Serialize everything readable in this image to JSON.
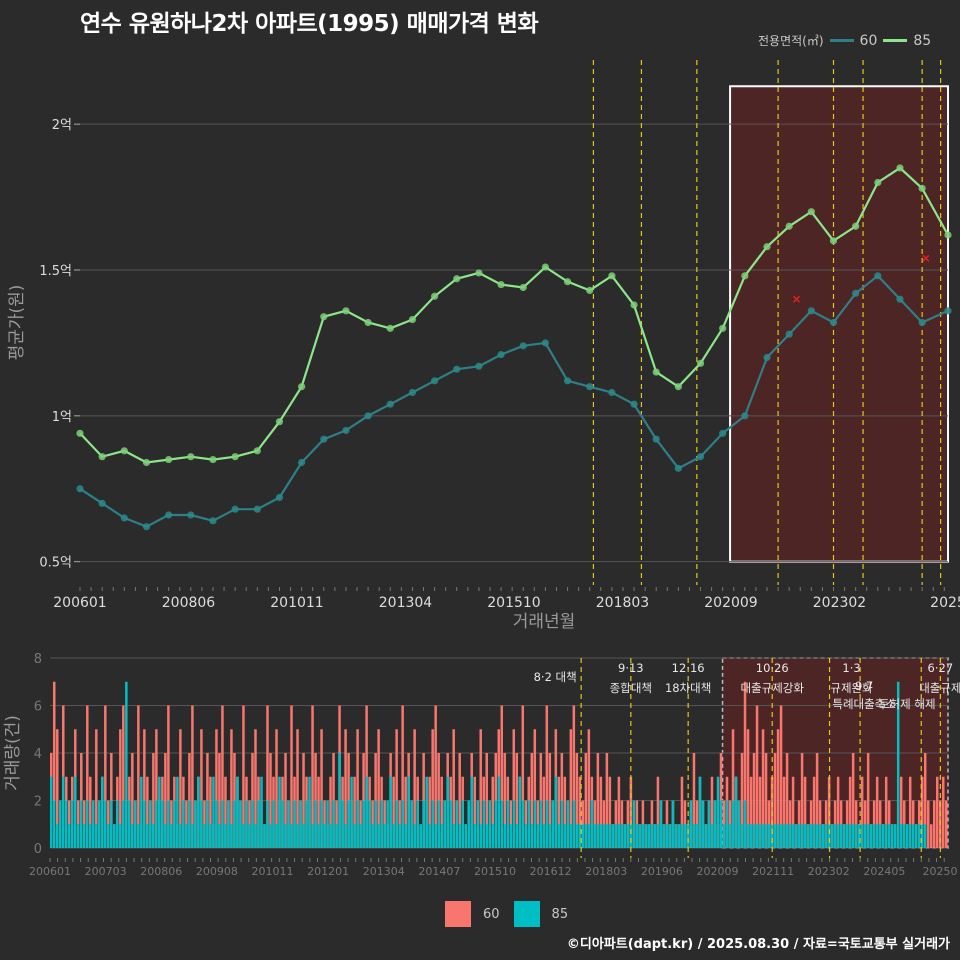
{
  "title": "연수 유원하나2차 아파트(1995) 매매가격 변화",
  "source": "©디아파트(dapt.kr) / 2025.08.30 / 자료=국토교통부 실거래가",
  "colors": {
    "s60_line": "#2e7f86",
    "s60_point": "#2a8a8a",
    "s85_line": "#8de68a",
    "s85_point": "#7ccf79",
    "bar60": "#f8766d",
    "bar85": "#00bfc4",
    "policy_line": "#e6c619",
    "highlight_fill": "#5a2424",
    "background": "#2b2b2b",
    "grid": "#555555"
  },
  "legend_top": {
    "title": "전용면적(㎡)",
    "items": [
      "60",
      "85"
    ]
  },
  "legend_bottom": {
    "items": [
      "60",
      "85"
    ]
  },
  "chart_data": [
    {
      "type": "line",
      "xlabel": "거래년월",
      "ylabel": "평균가(원)",
      "x_ticks": [
        "200601",
        "200806",
        "201011",
        "201304",
        "201510",
        "201803",
        "202009",
        "202302",
        "2025"
      ],
      "y_ticks": [
        "0.5억",
        "1억",
        "1.5억",
        "2억"
      ],
      "ylim": [
        0.42,
        2.22
      ],
      "x_range": [
        "2006-01",
        "2025-08"
      ],
      "policy_dates": [
        "2017-08",
        "2018-09",
        "2019-12",
        "2021-10",
        "2023-01",
        "2023-09",
        "2025-01",
        "2025-06"
      ],
      "highlight": {
        "x_from": "2020-09",
        "x_to": "2025-08",
        "y_from": 0.5,
        "y_to": 2.13
      },
      "markers_x": [
        [
          "2022-03",
          1.4
        ],
        [
          "2025-02",
          1.54
        ]
      ],
      "series": [
        {
          "name": "60",
          "points": [
            [
              "2006-01",
              0.75
            ],
            [
              "2006-07",
              0.7
            ],
            [
              "2007-01",
              0.65
            ],
            [
              "2007-07",
              0.62
            ],
            [
              "2008-01",
              0.66
            ],
            [
              "2008-07",
              0.66
            ],
            [
              "2009-01",
              0.64
            ],
            [
              "2009-07",
              0.68
            ],
            [
              "2010-01",
              0.68
            ],
            [
              "2010-07",
              0.72
            ],
            [
              "2011-01",
              0.84
            ],
            [
              "2011-07",
              0.92
            ],
            [
              "2012-01",
              0.95
            ],
            [
              "2012-07",
              1.0
            ],
            [
              "2013-01",
              1.04
            ],
            [
              "2013-07",
              1.08
            ],
            [
              "2014-01",
              1.12
            ],
            [
              "2014-07",
              1.16
            ],
            [
              "2015-01",
              1.17
            ],
            [
              "2015-07",
              1.21
            ],
            [
              "2016-01",
              1.24
            ],
            [
              "2016-07",
              1.25
            ],
            [
              "2017-01",
              1.12
            ],
            [
              "2017-07",
              1.1
            ],
            [
              "2018-01",
              1.08
            ],
            [
              "2018-07",
              1.04
            ],
            [
              "2019-01",
              0.92
            ],
            [
              "2019-07",
              0.82
            ],
            [
              "2020-01",
              0.86
            ],
            [
              "2020-07",
              0.94
            ],
            [
              "2021-01",
              1.0
            ],
            [
              "2021-07",
              1.2
            ],
            [
              "2022-01",
              1.28
            ],
            [
              "2022-07",
              1.36
            ],
            [
              "2023-01",
              1.32
            ],
            [
              "2023-07",
              1.42
            ],
            [
              "2024-01",
              1.48
            ],
            [
              "2024-07",
              1.4
            ],
            [
              "2025-01",
              1.32
            ],
            [
              "2025-08",
              1.36
            ]
          ]
        },
        {
          "name": "85",
          "points": [
            [
              "2006-01",
              0.94
            ],
            [
              "2006-07",
              0.86
            ],
            [
              "2007-01",
              0.88
            ],
            [
              "2007-07",
              0.84
            ],
            [
              "2008-01",
              0.85
            ],
            [
              "2008-07",
              0.86
            ],
            [
              "2009-01",
              0.85
            ],
            [
              "2009-07",
              0.86
            ],
            [
              "2010-01",
              0.88
            ],
            [
              "2010-07",
              0.98
            ],
            [
              "2011-01",
              1.1
            ],
            [
              "2011-07",
              1.34
            ],
            [
              "2012-01",
              1.36
            ],
            [
              "2012-07",
              1.32
            ],
            [
              "2013-01",
              1.3
            ],
            [
              "2013-07",
              1.33
            ],
            [
              "2014-01",
              1.41
            ],
            [
              "2014-07",
              1.47
            ],
            [
              "2015-01",
              1.49
            ],
            [
              "2015-07",
              1.45
            ],
            [
              "2016-01",
              1.44
            ],
            [
              "2016-07",
              1.51
            ],
            [
              "2017-01",
              1.46
            ],
            [
              "2017-07",
              1.43
            ],
            [
              "2018-01",
              1.48
            ],
            [
              "2018-07",
              1.38
            ],
            [
              "2019-01",
              1.15
            ],
            [
              "2019-07",
              1.1
            ],
            [
              "2020-01",
              1.18
            ],
            [
              "2020-07",
              1.3
            ],
            [
              "2021-01",
              1.48
            ],
            [
              "2021-07",
              1.58
            ],
            [
              "2022-01",
              1.65
            ],
            [
              "2022-07",
              1.7
            ],
            [
              "2023-01",
              1.6
            ],
            [
              "2023-07",
              1.65
            ],
            [
              "2024-01",
              1.8
            ],
            [
              "2024-07",
              1.85
            ],
            [
              "2025-01",
              1.78
            ],
            [
              "2025-08",
              1.62
            ]
          ]
        }
      ]
    },
    {
      "type": "bar",
      "ylabel": "거래량(건)",
      "x_ticks": [
        "200601",
        "200703",
        "200806",
        "200908",
        "201011",
        "201201",
        "201304",
        "201407",
        "201510",
        "201612",
        "201803",
        "201906",
        "202009",
        "202111",
        "202302",
        "202405",
        "20250"
      ],
      "y_ticks": [
        "0",
        "2",
        "4",
        "6",
        "8"
      ],
      "ylim": [
        0,
        8
      ],
      "x_range": [
        "2006-01",
        "2025-08"
      ],
      "policy_dates": [
        "2017-08",
        "2018-09",
        "2019-12",
        "2021-10",
        "2023-01",
        "2023-09",
        "2025-01",
        "2025-06"
      ],
      "highlight": {
        "x_from": "2020-09",
        "x_to": "2025-08"
      },
      "policies": [
        {
          "date": "2017-08",
          "label": "8·2 대책",
          "detail": ""
        },
        {
          "date": "2018-09",
          "label": "9·13",
          "detail": "종합대책"
        },
        {
          "date": "2019-12",
          "label": "12·16",
          "detail": "18차대책"
        },
        {
          "date": "2021-10",
          "label": "10·26",
          "detail": "대출규제강화"
        },
        {
          "date": "2023-01",
          "label": "1·3",
          "detail": "규제완화"
        },
        {
          "date": "2023-09",
          "label": "9·7",
          "detail": "특례대출축소"
        },
        {
          "date": "2025-01",
          "label": "",
          "detail": "토허제 해제"
        },
        {
          "date": "2025-06",
          "label": "6·27",
          "detail": "대출규제"
        }
      ],
      "series": [
        {
          "name": "60",
          "values": [
            4,
            7,
            5,
            2,
            6,
            3,
            2,
            3,
            5,
            2,
            4,
            2,
            6,
            3,
            1,
            5,
            2,
            3,
            6,
            2,
            4,
            1,
            3,
            5,
            6,
            2,
            3,
            4,
            2,
            6,
            1,
            5,
            3,
            2,
            4,
            5,
            2,
            3,
            4,
            6,
            2,
            3,
            1,
            5,
            3,
            2,
            4,
            6,
            2,
            3,
            5,
            2,
            4,
            3,
            1,
            5,
            4,
            6,
            3,
            2,
            5,
            4,
            3,
            2,
            6,
            3,
            2,
            4,
            5,
            3,
            2,
            1,
            6,
            4,
            3,
            5,
            2,
            3,
            4,
            2,
            6,
            3,
            5,
            2,
            4,
            3,
            2,
            6,
            4,
            3,
            5,
            2,
            1,
            3,
            4,
            2,
            6,
            3,
            5,
            4,
            2,
            3,
            5,
            2,
            4,
            6,
            3,
            2,
            4,
            5,
            3,
            2,
            1,
            4,
            3,
            5,
            2,
            6,
            3,
            4,
            2,
            5,
            3,
            1,
            4,
            2,
            3,
            5,
            6,
            4,
            3,
            2,
            4,
            3,
            5,
            2,
            4,
            3,
            1,
            2,
            4,
            3,
            2,
            5,
            3,
            4,
            2,
            3,
            4,
            5,
            6,
            4,
            3,
            2,
            5,
            4,
            3,
            6,
            2,
            3,
            4,
            5,
            2,
            4,
            3,
            6,
            4,
            2,
            5,
            3,
            4,
            3,
            2,
            5,
            6,
            4,
            3,
            2,
            4,
            5,
            3,
            2,
            4,
            3,
            2,
            4,
            3,
            1,
            2,
            3,
            2,
            1,
            2,
            3,
            1,
            2,
            1,
            2,
            1,
            1,
            2,
            1,
            3,
            2,
            1,
            2,
            1,
            2,
            1,
            1,
            3,
            2,
            1,
            2,
            4,
            2,
            3,
            2,
            1,
            2,
            3,
            2,
            1,
            4,
            2,
            3,
            2,
            5,
            3,
            2,
            4,
            7,
            5,
            3,
            4,
            6,
            3,
            5,
            4,
            2,
            3,
            4,
            5,
            6,
            3,
            4,
            2,
            3,
            1,
            2,
            4,
            3,
            1,
            2,
            3,
            4,
            2,
            1,
            2,
            3,
            1,
            2,
            3,
            2,
            1,
            2,
            3,
            4,
            2,
            1,
            3,
            2,
            4,
            1,
            2,
            3,
            2,
            1,
            3,
            2,
            1,
            1,
            2,
            3,
            2,
            1,
            3,
            2,
            1,
            2,
            3,
            4,
            2,
            1,
            2,
            3,
            2,
            3,
            2
          ]
        },
        {
          "name": "85",
          "values": [
            3,
            2,
            1,
            2,
            3,
            2,
            1,
            2,
            3,
            1,
            2,
            1,
            2,
            1,
            2,
            1,
            2,
            3,
            2,
            1,
            2,
            1,
            2,
            1,
            2,
            7,
            2,
            1,
            2,
            1,
            3,
            2,
            1,
            2,
            1,
            2,
            3,
            2,
            1,
            2,
            1,
            2,
            3,
            1,
            2,
            1,
            2,
            1,
            2,
            3,
            2,
            1,
            2,
            1,
            3,
            2,
            1,
            2,
            1,
            2,
            1,
            2,
            3,
            2,
            1,
            2,
            1,
            2,
            1,
            2,
            3,
            1,
            2,
            1,
            2,
            1,
            3,
            2,
            1,
            2,
            1,
            2,
            1,
            2,
            1,
            2,
            3,
            1,
            2,
            1,
            2,
            1,
            2,
            1,
            2,
            1,
            4,
            2,
            1,
            2,
            3,
            1,
            2,
            1,
            2,
            3,
            2,
            1,
            2,
            1,
            2,
            1,
            2,
            3,
            1,
            2,
            1,
            2,
            1,
            3,
            2,
            1,
            2,
            1,
            2,
            3,
            1,
            2,
            1,
            2,
            1,
            2,
            3,
            2,
            1,
            2,
            1,
            2,
            1,
            2,
            3,
            1,
            2,
            1,
            2,
            1,
            2,
            1,
            2,
            3,
            2,
            1,
            2,
            1,
            2,
            1,
            3,
            2,
            1,
            2,
            1,
            2,
            1,
            2,
            1,
            2,
            1,
            2,
            3,
            1,
            2,
            1,
            2,
            1,
            2,
            1,
            1,
            1,
            1,
            1,
            2,
            1,
            1,
            1,
            1,
            1,
            1,
            1,
            1,
            1,
            1,
            1,
            1,
            1,
            2,
            1,
            1,
            1,
            1,
            1,
            1,
            1,
            1,
            2,
            1,
            1,
            1,
            2,
            1,
            1,
            1,
            1,
            1,
            2,
            1,
            1,
            3,
            2,
            1,
            2,
            1,
            2,
            3,
            2,
            1,
            2,
            1,
            2,
            3,
            2,
            1,
            2,
            1,
            1,
            1,
            1,
            1,
            1,
            1,
            1,
            1,
            1,
            1,
            1,
            1,
            1,
            1,
            1,
            1,
            1,
            1,
            1,
            1,
            1,
            1,
            1,
            1,
            1,
            1,
            1,
            1,
            1,
            1,
            1,
            1,
            1,
            1,
            1,
            1,
            1,
            1,
            1,
            1,
            1,
            1,
            1,
            1,
            1,
            1,
            1,
            1,
            1,
            7,
            1,
            1,
            1,
            1,
            1,
            1,
            1,
            1,
            1
          ]
        }
      ]
    }
  ]
}
